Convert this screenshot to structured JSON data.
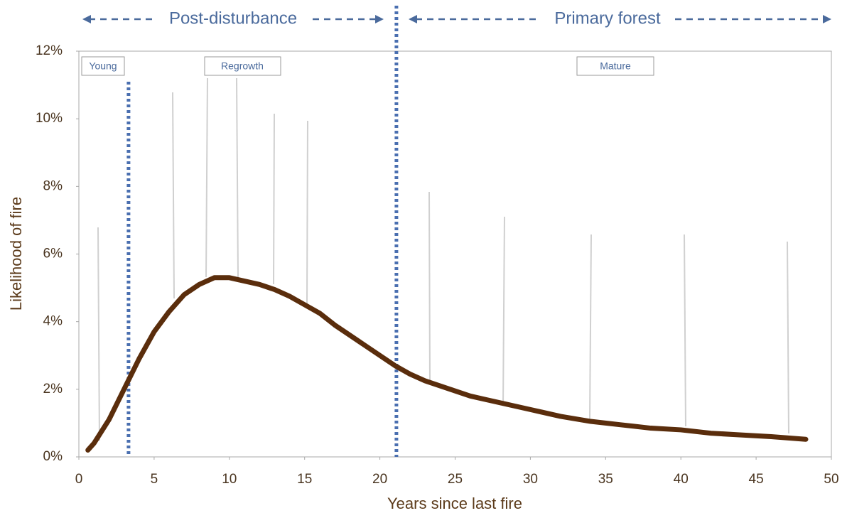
{
  "chart_data": {
    "type": "line",
    "x_label": "Years since last fire",
    "y_label": "Likelihood of fire",
    "periods": [
      "Post-disturbance",
      "Primary forest"
    ],
    "stages": [
      "Young",
      "Regrowth",
      "Mature"
    ],
    "vlines": [
      3.3,
      21.1
    ],
    "xlim": [
      0,
      50
    ],
    "ylim": [
      0,
      12
    ],
    "xticks": [
      0,
      5,
      10,
      15,
      20,
      25,
      30,
      35,
      40,
      45,
      50
    ],
    "yticks": [
      {
        "value": 0,
        "label": "0%"
      },
      {
        "value": 2,
        "label": "2%"
      },
      {
        "value": 4,
        "label": "4%"
      },
      {
        "value": 6,
        "label": "6%"
      },
      {
        "value": 8,
        "label": "8%"
      },
      {
        "value": 10,
        "label": "10%"
      },
      {
        "value": 12,
        "label": "12%"
      }
    ],
    "series": [
      {
        "color": "#5a2d0c",
        "x": [
          0.6,
          1,
          2,
          3,
          4,
          5,
          6,
          7,
          8,
          9,
          10,
          11,
          12,
          13,
          14,
          15,
          16,
          17,
          18,
          19,
          20,
          21,
          22,
          23,
          24,
          25,
          26,
          27,
          28,
          29,
          30,
          32,
          34,
          36,
          38,
          40,
          42,
          44,
          46,
          48.3
        ],
        "values": [
          0.2,
          0.4,
          1.1,
          2.0,
          2.9,
          3.7,
          4.3,
          4.8,
          5.1,
          5.3,
          5.3,
          5.2,
          5.1,
          4.95,
          4.75,
          4.5,
          4.25,
          3.9,
          3.6,
          3.3,
          3.0,
          2.7,
          2.45,
          2.25,
          2.1,
          1.95,
          1.8,
          1.7,
          1.6,
          1.5,
          1.4,
          1.2,
          1.05,
          0.95,
          0.85,
          0.8,
          0.7,
          0.65,
          0.6,
          0.52
        ]
      }
    ]
  }
}
